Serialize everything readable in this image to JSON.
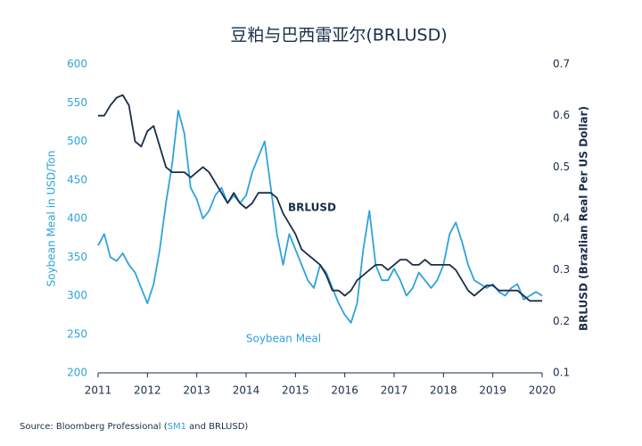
{
  "chart_data": {
    "type": "line",
    "title": "豆粕与巴西雷亚尔(BRLUSD)",
    "y_label": "Soybean Meal in USD/Ton",
    "y2_label": "BRLUSD (Brazlian Real Per US Dollar)",
    "source": {
      "prefix": "Source: Bloomberg Professional (",
      "link": "SM1",
      "suffix": " and BRLUSD)"
    },
    "xlim": [
      2011,
      2020
    ],
    "xticks": [
      2011,
      2012,
      2013,
      2014,
      2015,
      2016,
      2017,
      2018,
      2019,
      2020
    ],
    "ylim": [
      200,
      600
    ],
    "yticks": [
      200,
      250,
      300,
      350,
      400,
      450,
      500,
      550,
      600
    ],
    "y2lim": [
      0.1,
      0.7
    ],
    "y2ticks": [
      0.1,
      0.2,
      0.3,
      0.4,
      0.5,
      0.6,
      0.7
    ],
    "grid": false,
    "x": [
      2011,
      2011.125,
      2011.25,
      2011.375,
      2011.5,
      2011.625,
      2011.75,
      2011.875,
      2012,
      2012.125,
      2012.25,
      2012.375,
      2012.5,
      2012.625,
      2012.75,
      2012.875,
      2013,
      2013.125,
      2013.25,
      2013.375,
      2013.5,
      2013.625,
      2013.75,
      2013.875,
      2014,
      2014.125,
      2014.25,
      2014.375,
      2014.5,
      2014.625,
      2014.75,
      2014.875,
      2015,
      2015.125,
      2015.25,
      2015.375,
      2015.5,
      2015.625,
      2015.75,
      2015.875,
      2016,
      2016.125,
      2016.25,
      2016.375,
      2016.5,
      2016.625,
      2016.75,
      2016.875,
      2017,
      2017.125,
      2017.25,
      2017.375,
      2017.5,
      2017.625,
      2017.75,
      2017.875,
      2018,
      2018.125,
      2018.25,
      2018.375,
      2018.5,
      2018.625,
      2018.75,
      2018.875,
      2019,
      2019.125,
      2019.25,
      2019.375,
      2019.5,
      2019.625,
      2019.75,
      2019.875,
      2020
    ],
    "series": [
      {
        "name": "Soybean Meal",
        "color": "#2ea3dc",
        "axis": "y",
        "values": [
          365,
          380,
          350,
          345,
          355,
          340,
          330,
          310,
          290,
          315,
          360,
          420,
          470,
          540,
          510,
          440,
          425,
          400,
          410,
          430,
          440,
          420,
          430,
          420,
          430,
          460,
          480,
          500,
          440,
          380,
          340,
          380,
          360,
          340,
          320,
          310,
          340,
          330,
          310,
          290,
          275,
          265,
          290,
          360,
          410,
          340,
          320,
          320,
          335,
          320,
          300,
          310,
          330,
          320,
          310,
          320,
          340,
          380,
          395,
          370,
          340,
          320,
          315,
          310,
          315,
          305,
          300,
          310,
          315,
          295,
          300,
          305,
          300
        ]
      },
      {
        "name": "BRLUSD",
        "color": "#1a2e4a",
        "axis": "y2",
        "values": [
          0.6,
          0.6,
          0.62,
          0.635,
          0.64,
          0.62,
          0.55,
          0.54,
          0.57,
          0.58,
          0.54,
          0.5,
          0.49,
          0.49,
          0.49,
          0.48,
          0.49,
          0.5,
          0.49,
          0.47,
          0.45,
          0.43,
          0.45,
          0.43,
          0.42,
          0.43,
          0.45,
          0.45,
          0.45,
          0.44,
          0.41,
          0.39,
          0.37,
          0.34,
          0.33,
          0.32,
          0.31,
          0.29,
          0.26,
          0.26,
          0.25,
          0.26,
          0.28,
          0.29,
          0.3,
          0.31,
          0.31,
          0.3,
          0.31,
          0.32,
          0.32,
          0.31,
          0.31,
          0.32,
          0.31,
          0.31,
          0.31,
          0.31,
          0.3,
          0.28,
          0.26,
          0.25,
          0.26,
          0.27,
          0.27,
          0.26,
          0.26,
          0.26,
          0.26,
          0.25,
          0.24,
          0.24,
          0.24
        ]
      }
    ]
  }
}
